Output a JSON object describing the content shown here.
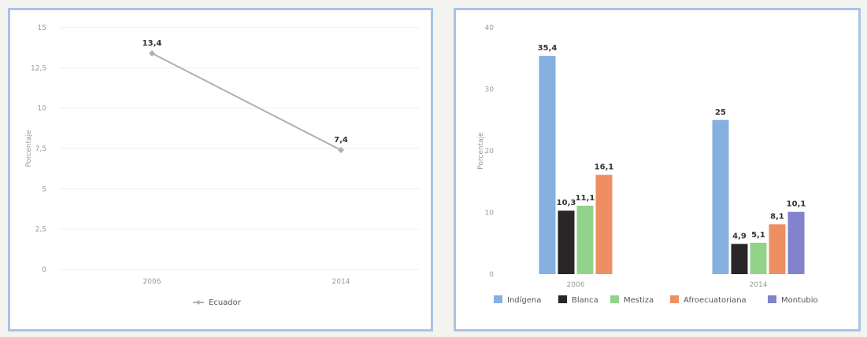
{
  "chart_data": [
    {
      "type": "line",
      "ylabel": "Porcentaje",
      "ylim": [
        0,
        15
      ],
      "yticks": [
        "0",
        "2,5",
        "5",
        "7,5",
        "10",
        "12,5",
        "15"
      ],
      "categories": [
        "2006",
        "2014"
      ],
      "series": [
        {
          "name": "Ecuador",
          "values": [
            13.4,
            7.4
          ],
          "labels": [
            "13,4",
            "7,4"
          ],
          "color": "#b0b0b0"
        }
      ],
      "grid": true,
      "legend": "bottom"
    },
    {
      "type": "bar",
      "ylabel": "Porcentaje",
      "ylim": [
        0,
        40
      ],
      "yticks": [
        "0",
        "10",
        "20",
        "30",
        "40"
      ],
      "categories": [
        "2006",
        "2014"
      ],
      "series": [
        {
          "name": "Indígena",
          "values": [
            35.4,
            25
          ],
          "labels": [
            "35,4",
            "25"
          ],
          "color": "#85b0e0"
        },
        {
          "name": "Blanca",
          "values": [
            10.3,
            4.9
          ],
          "labels": [
            "10,3",
            "4,9"
          ],
          "color": "#2a2628"
        },
        {
          "name": "Mestiza",
          "values": [
            11.1,
            5.1
          ],
          "labels": [
            "11,1",
            "5,1"
          ],
          "color": "#93d28a"
        },
        {
          "name": "Afroecuatoriana",
          "values": [
            16.1,
            8.1
          ],
          "labels": [
            "16,1",
            "8,1"
          ],
          "color": "#ee8f63"
        },
        {
          "name": "Montubio",
          "values": [
            null,
            10.1
          ],
          "labels": [
            null,
            "10,1"
          ],
          "color": "#8283cc"
        }
      ],
      "grid": false,
      "legend": "bottom"
    }
  ]
}
